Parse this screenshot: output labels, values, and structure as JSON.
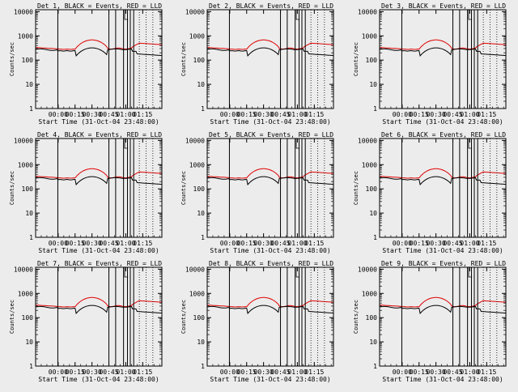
{
  "xlabel_prefix": "Start Time",
  "start_time": "31-Oct-04 23:48:00",
  "ylabel": "Counts/sec",
  "legend_text": "BLACK = Events, RED = LLD",
  "colors": {
    "background": "#ececec",
    "axes": "#000000",
    "events": "#000000",
    "lld": "#e00000"
  },
  "chart_data": [
    {
      "type": "line",
      "title": "Det 1, BLACK = Events, RED = LLD",
      "x_ticks": [
        "00:00",
        "00:15",
        "00:30",
        "00:45",
        "01:00",
        "01:15"
      ],
      "y_ticks": [
        "1",
        "10",
        "100",
        "1000",
        "10000"
      ],
      "yscale": "log",
      "ylim": [
        1,
        12000
      ],
      "xlim_minutes": [
        -20,
        92
      ],
      "series": [
        {
          "name": "Events",
          "color": "#000000"
        },
        {
          "name": "LLD",
          "color": "#e00000"
        }
      ]
    },
    {
      "type": "line",
      "title": "Det 2, BLACK = Events, RED = LLD",
      "x_ticks": [
        "00:00",
        "00:15",
        "00:30",
        "00:45",
        "01:00",
        "01:15"
      ],
      "y_ticks": [
        "1",
        "10",
        "100",
        "1000",
        "10000"
      ],
      "yscale": "log",
      "ylim": [
        1,
        12000
      ],
      "xlim_minutes": [
        -20,
        92
      ],
      "series": [
        {
          "name": "Events",
          "color": "#000000"
        },
        {
          "name": "LLD",
          "color": "#e00000"
        }
      ]
    },
    {
      "type": "line",
      "title": "Det 3, BLACK = Events, RED = LLD",
      "x_ticks": [
        "00:00",
        "00:15",
        "00:30",
        "00:45",
        "01:00",
        "01:15"
      ],
      "y_ticks": [
        "1",
        "10",
        "100",
        "1000",
        "10000"
      ],
      "yscale": "log",
      "ylim": [
        1,
        12000
      ],
      "xlim_minutes": [
        -20,
        92
      ],
      "series": [
        {
          "name": "Events",
          "color": "#000000"
        },
        {
          "name": "LLD",
          "color": "#e00000"
        }
      ]
    },
    {
      "type": "line",
      "title": "Det 4, BLACK = Events, RED = LLD",
      "x_ticks": [
        "00:00",
        "00:15",
        "00:30",
        "00:45",
        "01:00",
        "01:15"
      ],
      "y_ticks": [
        "1",
        "10",
        "100",
        "1000",
        "10000"
      ],
      "yscale": "log",
      "ylim": [
        1,
        12000
      ],
      "xlim_minutes": [
        -20,
        92
      ],
      "series": [
        {
          "name": "Events",
          "color": "#000000"
        },
        {
          "name": "LLD",
          "color": "#e00000"
        }
      ]
    },
    {
      "type": "line",
      "title": "Det 5, BLACK = Events, RED = LLD",
      "x_ticks": [
        "00:00",
        "00:15",
        "00:30",
        "00:45",
        "01:00",
        "01:15"
      ],
      "y_ticks": [
        "1",
        "10",
        "100",
        "1000",
        "10000"
      ],
      "yscale": "log",
      "ylim": [
        1,
        12000
      ],
      "xlim_minutes": [
        -20,
        92
      ],
      "series": [
        {
          "name": "Events",
          "color": "#000000"
        },
        {
          "name": "LLD",
          "color": "#e00000"
        }
      ]
    },
    {
      "type": "line",
      "title": "Det 6, BLACK = Events, RED = LLD",
      "x_ticks": [
        "00:00",
        "00:15",
        "00:30",
        "00:45",
        "01:00",
        "01:15"
      ],
      "y_ticks": [
        "1",
        "10",
        "100",
        "1000",
        "10000"
      ],
      "yscale": "log",
      "ylim": [
        1,
        12000
      ],
      "xlim_minutes": [
        -20,
        92
      ],
      "series": [
        {
          "name": "Events",
          "color": "#000000"
        },
        {
          "name": "LLD",
          "color": "#e00000"
        }
      ]
    },
    {
      "type": "line",
      "title": "Det 7, BLACK = Events, RED = LLD",
      "x_ticks": [
        "00:00",
        "00:15",
        "00:30",
        "00:45",
        "01:00",
        "01:15"
      ],
      "y_ticks": [
        "1",
        "10",
        "100",
        "1000",
        "10000"
      ],
      "yscale": "log",
      "ylim": [
        1,
        12000
      ],
      "xlim_minutes": [
        -20,
        92
      ],
      "series": [
        {
          "name": "Events",
          "color": "#000000"
        },
        {
          "name": "LLD",
          "color": "#e00000"
        }
      ]
    },
    {
      "type": "line",
      "title": "Det 8, BLACK = Events, RED = LLD",
      "x_ticks": [
        "00:00",
        "00:15",
        "00:30",
        "00:45",
        "01:00",
        "01:15"
      ],
      "y_ticks": [
        "1",
        "10",
        "100",
        "1000",
        "10000"
      ],
      "yscale": "log",
      "ylim": [
        1,
        12000
      ],
      "xlim_minutes": [
        -20,
        92
      ],
      "series": [
        {
          "name": "Events",
          "color": "#000000"
        },
        {
          "name": "LLD",
          "color": "#e00000"
        }
      ]
    },
    {
      "type": "line",
      "title": "Det 9, BLACK = Events, RED = LLD",
      "x_ticks": [
        "00:00",
        "00:15",
        "00:30",
        "00:45",
        "01:00",
        "01:15"
      ],
      "y_ticks": [
        "1",
        "10",
        "100",
        "1000",
        "10000"
      ],
      "yscale": "log",
      "ylim": [
        1,
        12000
      ],
      "xlim_minutes": [
        -20,
        92
      ],
      "series": [
        {
          "name": "Events",
          "color": "#000000"
        },
        {
          "name": "LLD",
          "color": "#e00000"
        }
      ]
    }
  ]
}
